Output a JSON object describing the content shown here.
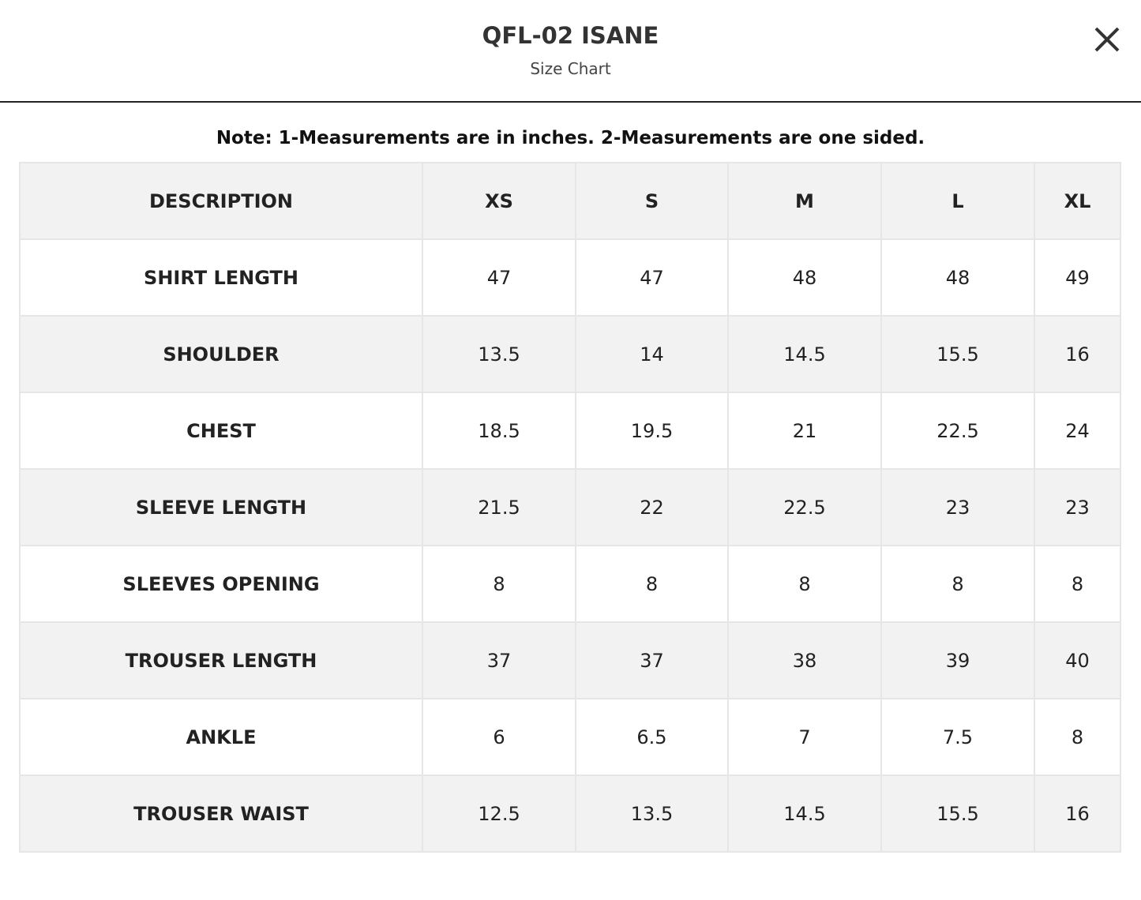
{
  "header": {
    "title": "QFL-02 ISANE",
    "subtitle": "Size Chart"
  },
  "note": "Note: 1-Measurements are in inches. 2-Measurements are one sided.",
  "table": {
    "header": [
      "DESCRIPTION",
      "XS",
      "S",
      "M",
      "L",
      "XL"
    ],
    "rows": [
      [
        "SHIRT LENGTH",
        "47",
        "47",
        "48",
        "48",
        "49"
      ],
      [
        "SHOULDER",
        "13.5",
        "14",
        "14.5",
        "15.5",
        "16"
      ],
      [
        "CHEST",
        "18.5",
        "19.5",
        "21",
        "22.5",
        "24"
      ],
      [
        "SLEEVE LENGTH",
        "21.5",
        "22",
        "22.5",
        "23",
        "23"
      ],
      [
        "SLEEVES OPENING",
        "8",
        "8",
        "8",
        "8",
        "8"
      ],
      [
        "TROUSER LENGTH",
        "37",
        "37",
        "38",
        "39",
        "40"
      ],
      [
        "ANKLE",
        "6",
        "6.5",
        "7",
        "7.5",
        "8"
      ],
      [
        "TROUSER WAIST",
        "12.5",
        "13.5",
        "14.5",
        "15.5",
        "16"
      ]
    ]
  }
}
